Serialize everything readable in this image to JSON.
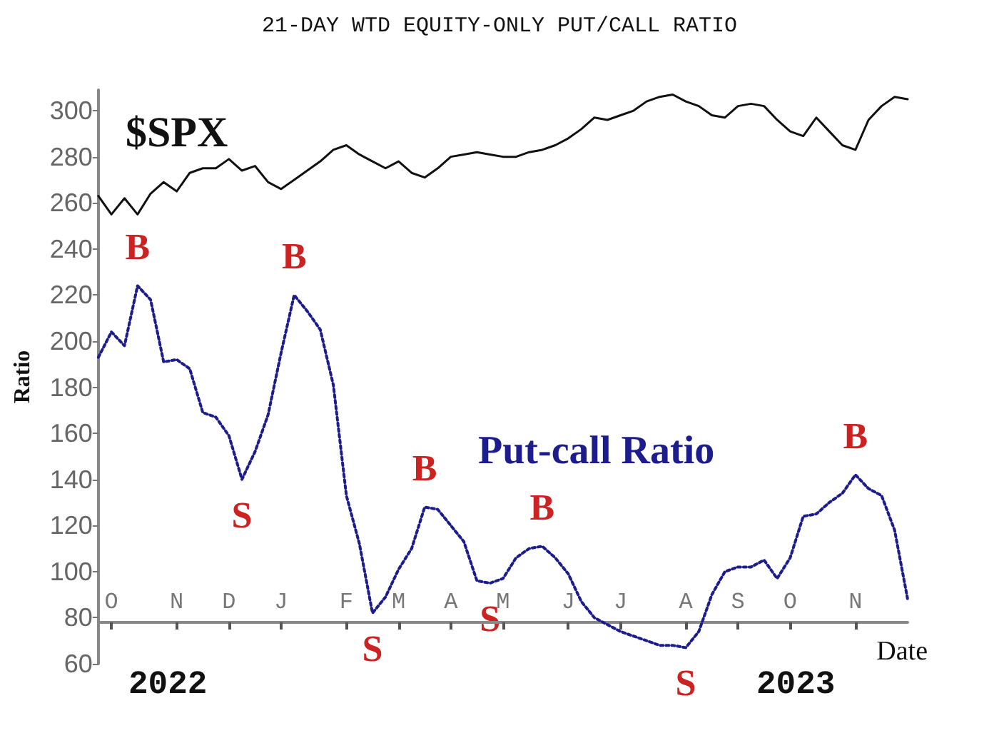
{
  "chart_data": {
    "type": "line",
    "title": "21-DAY WTD EQUITY-ONLY PUT/CALL RATIO",
    "xlabel": "Date",
    "ylabel": "Ratio",
    "categories": [
      null,
      "O",
      null,
      null,
      null,
      null,
      "N",
      null,
      null,
      null,
      "D",
      null,
      null,
      null,
      "J",
      null,
      null,
      null,
      null,
      "F",
      null,
      null,
      null,
      "M",
      null,
      null,
      null,
      "A",
      null,
      null,
      null,
      "M",
      null,
      null,
      null,
      null,
      "J",
      null,
      null,
      null,
      "J",
      null,
      null,
      null,
      null,
      "A",
      null,
      null,
      null,
      "S",
      null,
      null,
      null,
      "O",
      null,
      null,
      null,
      null,
      "N",
      null,
      null,
      null,
      null
    ],
    "ylim": [
      60,
      309
    ],
    "yticks": [
      60,
      80,
      100,
      120,
      140,
      160,
      180,
      200,
      220,
      240,
      260,
      280,
      300
    ],
    "grid": false,
    "series": [
      {
        "name": "$SPX",
        "color": "#111111",
        "line_style": "solid",
        "values": [
          263,
          255,
          262,
          255,
          264,
          269,
          265,
          273,
          275,
          275,
          279,
          274,
          276,
          269,
          266,
          270,
          274,
          278,
          283,
          285,
          281,
          278,
          275,
          278,
          273,
          271,
          275,
          280,
          281,
          282,
          281,
          280,
          280,
          282,
          283,
          285,
          288,
          292,
          297,
          296,
          298,
          300,
          304,
          306,
          307,
          304,
          302,
          298,
          297,
          302,
          303,
          302,
          296,
          291,
          289,
          297,
          291,
          285,
          283,
          296,
          302,
          306,
          305
        ]
      },
      {
        "name": "Put-call Ratio",
        "color": "#1c1c8c",
        "line_style": "dotted",
        "values": [
          193,
          204,
          198,
          224,
          218,
          191,
          192,
          188,
          169,
          167,
          159,
          140,
          152,
          168,
          195,
          220,
          213,
          205,
          181,
          133,
          112,
          82,
          89,
          101,
          110,
          128,
          127,
          120,
          113,
          96,
          95,
          97,
          106,
          110,
          111,
          106,
          99,
          87,
          80,
          77,
          74,
          72,
          70,
          68,
          68,
          67,
          74,
          90,
          100,
          102,
          102,
          105,
          97,
          106,
          124,
          125,
          130,
          134,
          142,
          136,
          133,
          118,
          88
        ]
      }
    ],
    "annotations": [
      {
        "text": "B",
        "y": 224
      },
      {
        "text": "S",
        "y": 140
      },
      {
        "text": "B",
        "y": 220
      },
      {
        "text": "S",
        "y": 82
      },
      {
        "text": "B",
        "y": 128
      },
      {
        "text": "S",
        "y": 95
      },
      {
        "text": "B",
        "y": 111
      },
      {
        "text": "S",
        "y": 67
      },
      {
        "text": "B",
        "y": 142
      },
      "2022",
      "2023"
    ]
  }
}
